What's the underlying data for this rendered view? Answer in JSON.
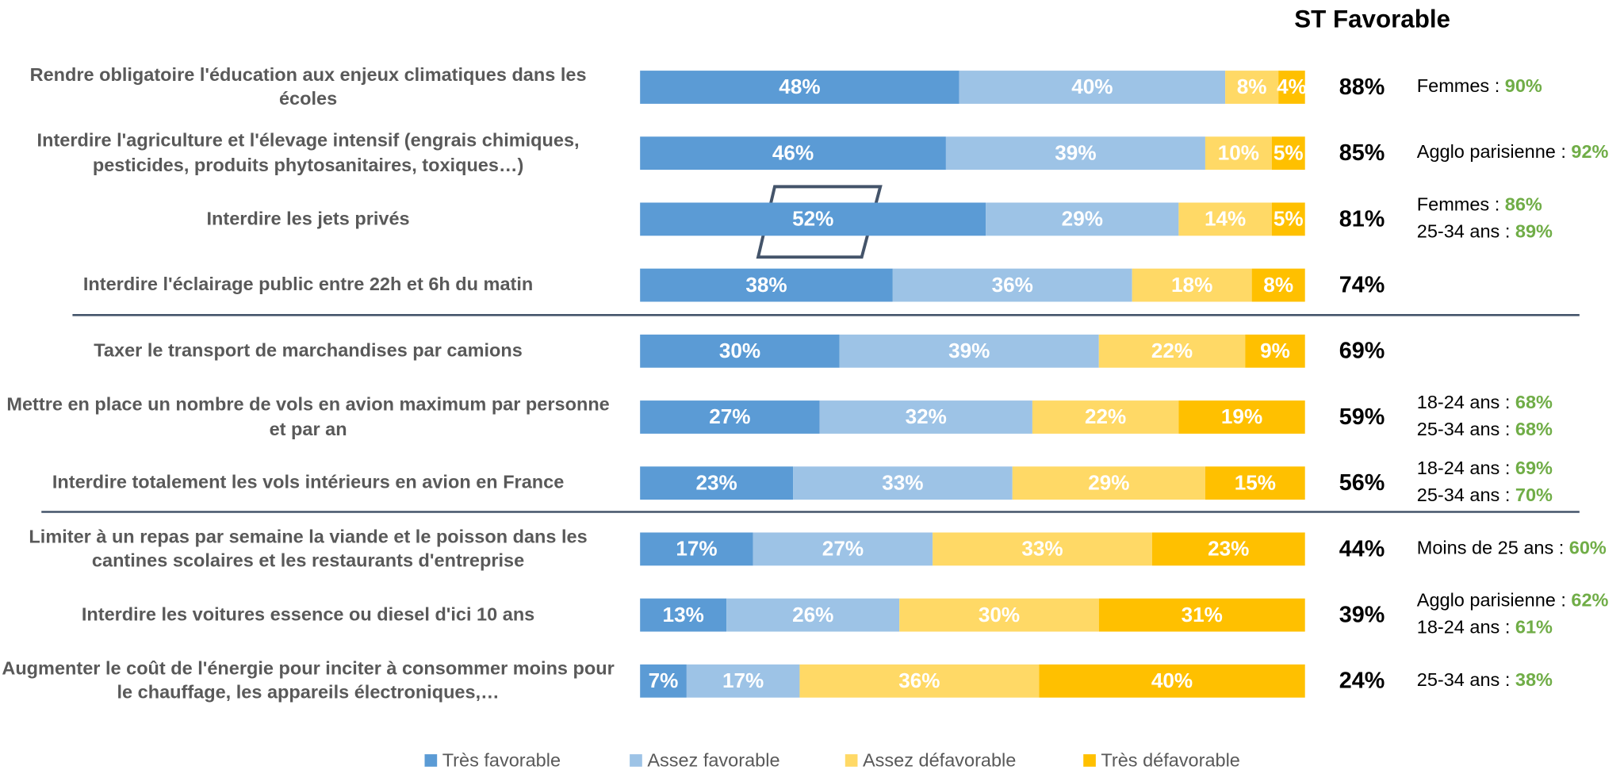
{
  "chart_data": {
    "type": "stacked_barh",
    "categories": [
      "Rendre obligatoire l'éducation aux enjeux climatiques dans les écoles",
      "Interdire l'agriculture et l'élevage intensif (engrais chimiques, pesticides, produits phytosanitaires, toxiques…)",
      "Interdire les jets privés",
      "Interdire l'éclairage public entre 22h et 6h du matin",
      "Taxer le transport de marchandises par camions",
      "Mettre en place un nombre de vols en avion maximum par personne et par an",
      "Interdire totalement les vols intérieurs en avion en France",
      "Limiter à un repas par semaine la viande et le poisson dans les cantines scolaires et les restaurants d'entreprise",
      "Interdire les voitures essence ou diesel d'ici 10 ans",
      "Augmenter le coût de l'énergie pour inciter à consommer moins pour le chauffage, les appareils électroniques,…"
    ],
    "xlim": [
      0,
      100
    ],
    "series": [
      {
        "name": "Très favorable",
        "color": "#5b9bd5",
        "values": [
          48,
          46,
          52,
          38,
          30,
          27,
          23,
          17,
          13,
          7
        ],
        "value_labels": [
          "48%",
          "46%",
          "52%",
          "38%",
          "30%",
          "27%",
          "23%",
          "17%",
          "13%",
          "7%"
        ]
      },
      {
        "name": "Assez favorable",
        "color": "#9dc3e6",
        "values": [
          40,
          39,
          29,
          36,
          39,
          32,
          33,
          27,
          26,
          17
        ],
        "value_labels": [
          "40%",
          "39%",
          "29%",
          "36%",
          "39%",
          "32%",
          "33%",
          "27%",
          "26%",
          "17%"
        ]
      },
      {
        "name": "Assez défavorable",
        "color": "#ffd966",
        "values": [
          8,
          10,
          14,
          18,
          22,
          22,
          29,
          33,
          30,
          36
        ],
        "value_labels": [
          "8%",
          "10%",
          "14%",
          "18%",
          "22%",
          "22%",
          "29%",
          "33%",
          "30%",
          "36%"
        ]
      },
      {
        "name": "Très défavorable",
        "color": "#ffc000",
        "values": [
          4,
          5,
          5,
          8,
          9,
          19,
          15,
          23,
          31,
          40
        ],
        "value_labels": [
          "4%",
          "5%",
          "5%",
          "8%",
          "9%",
          "19%",
          "15%",
          "23%",
          "31%",
          "40%"
        ]
      }
    ],
    "st_favorable": {
      "title": "ST Favorable",
      "values": [
        88,
        85,
        81,
        74,
        69,
        59,
        56,
        44,
        39,
        24
      ],
      "value_labels": [
        "88%",
        "85%",
        "81%",
        "74%",
        "69%",
        "59%",
        "56%",
        "44%",
        "39%",
        "24%"
      ]
    },
    "notes": [
      [
        {
          "label": "Femmes : ",
          "value": "90%"
        }
      ],
      [
        {
          "label": "Agglo parisienne : ",
          "value": "92%"
        }
      ],
      [
        {
          "label": "Femmes : ",
          "value": "86%"
        },
        {
          "label": "25-34 ans : ",
          "value": "89%"
        }
      ],
      [],
      [],
      [
        {
          "label": "18-24 ans : ",
          "value": "68%"
        },
        {
          "label": "25-34 ans : ",
          "value": "68%"
        }
      ],
      [
        {
          "label": "18-24 ans : ",
          "value": "69%"
        },
        {
          "label": "25-34 ans : ",
          "value": "70%"
        }
      ],
      [
        {
          "label": "Moins de 25 ans : ",
          "value": "60%"
        }
      ],
      [
        {
          "label": "Agglo parisienne : ",
          "value": "62%"
        },
        {
          "label": "18-24 ans : ",
          "value": "61%"
        }
      ],
      [
        {
          "label": "25-34 ans : ",
          "value": "38%"
        }
      ]
    ]
  }
}
